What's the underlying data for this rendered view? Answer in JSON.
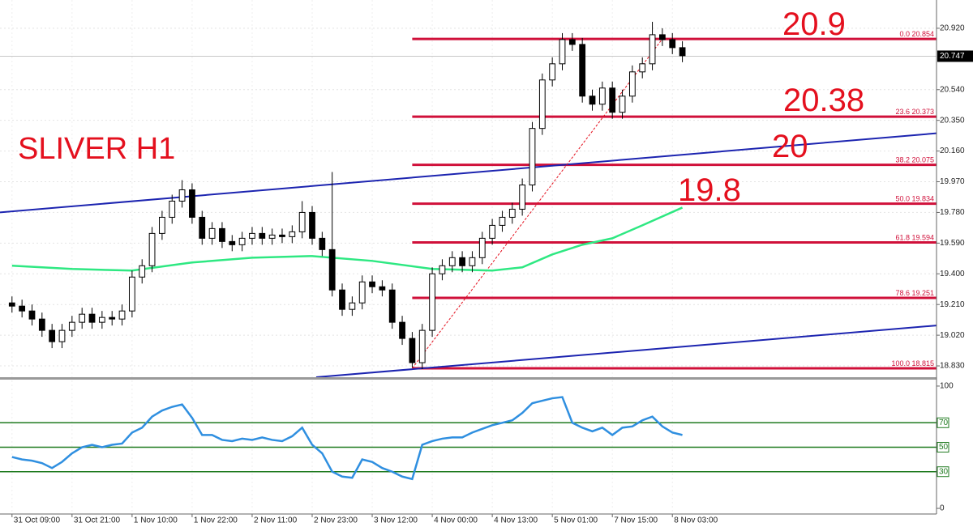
{
  "chart_data": {
    "type": "candlestick",
    "title": "SLIVER H1",
    "annotations": [
      "20.9",
      "20.38",
      "20",
      "19.8"
    ],
    "xlim": [
      -1.2,
      92.4
    ],
    "xticks": [
      {
        "value": 0,
        "label": "31 Oct 09:00"
      },
      {
        "value": 6,
        "label": "31 Oct 21:00"
      },
      {
        "value": 12,
        "label": "1 Nov 10:00"
      },
      {
        "value": 18,
        "label": "1 Nov 22:00"
      },
      {
        "value": 24,
        "label": "2 Nov 11:00"
      },
      {
        "value": 30,
        "label": "2 Nov 23:00"
      },
      {
        "value": 36,
        "label": "3 Nov 12:00"
      },
      {
        "value": 42,
        "label": "4 Nov 00:00"
      },
      {
        "value": 48,
        "label": "4 Nov 13:00"
      },
      {
        "value": 54,
        "label": "5 Nov 01:00"
      },
      {
        "value": 60,
        "label": "7 Nov 15:00"
      },
      {
        "value": 66,
        "label": "8 Nov 03:00"
      }
    ],
    "ylim": [
      18.76,
      21.095
    ],
    "yticks": [
      {
        "value": 20.92,
        "label": "20.920"
      },
      {
        "value": 20.54,
        "label": "20.540"
      },
      {
        "value": 20.35,
        "label": "20.350"
      },
      {
        "value": 20.16,
        "label": "20.160"
      },
      {
        "value": 19.97,
        "label": "19.970"
      },
      {
        "value": 19.78,
        "label": "19.780"
      },
      {
        "value": 19.59,
        "label": "19.590"
      },
      {
        "value": 19.4,
        "label": "19.400"
      },
      {
        "value": 19.21,
        "label": "19.210"
      },
      {
        "value": 19.02,
        "label": "19.020"
      },
      {
        "value": 18.83,
        "label": "18.830"
      }
    ],
    "grid": true,
    "current_price": 20.747,
    "color": "#000000",
    "open": [
      19.22,
      19.2,
      19.17,
      19.12,
      19.05,
      18.98,
      19.05,
      19.1,
      19.15,
      19.1,
      19.13,
      19.12,
      19.17,
      19.38,
      19.45,
      19.65,
      19.75,
      19.85,
      19.92,
      19.75,
      19.62,
      19.68,
      19.6,
      19.58,
      19.62,
      19.65,
      19.62,
      19.64,
      19.63,
      19.66,
      19.78,
      19.62,
      19.55,
      19.3,
      19.18,
      19.22,
      19.35,
      19.32,
      19.3,
      19.1,
      19.0,
      18.85,
      19.05,
      19.4,
      19.45,
      19.5,
      19.45,
      19.5,
      19.62,
      19.7,
      19.75,
      19.8,
      19.95,
      20.3,
      20.6,
      20.7,
      20.85,
      20.82,
      20.5,
      20.45,
      20.55,
      20.4,
      20.5,
      20.65,
      20.7,
      20.88,
      20.85,
      20.8
    ],
    "high": [
      19.26,
      19.24,
      19.21,
      19.16,
      19.09,
      19.09,
      19.14,
      19.19,
      19.19,
      19.17,
      19.17,
      19.21,
      19.42,
      19.49,
      19.69,
      19.79,
      19.89,
      19.98,
      19.96,
      19.79,
      19.72,
      19.72,
      19.64,
      19.66,
      19.69,
      19.69,
      19.68,
      19.68,
      19.7,
      19.85,
      19.82,
      19.66,
      20.03,
      19.34,
      19.26,
      19.39,
      19.39,
      19.36,
      19.34,
      19.14,
      19.04,
      19.09,
      19.44,
      19.49,
      19.54,
      19.54,
      19.54,
      19.66,
      19.74,
      19.79,
      19.84,
      19.99,
      20.34,
      20.64,
      20.74,
      20.89,
      20.89,
      20.86,
      20.54,
      20.59,
      20.59,
      20.54,
      20.69,
      20.74,
      20.96,
      20.92,
      20.89,
      20.84
    ],
    "low": [
      19.16,
      19.13,
      19.08,
      19.01,
      18.94,
      18.94,
      19.01,
      19.06,
      19.06,
      19.06,
      19.08,
      19.08,
      19.13,
      19.34,
      19.41,
      19.61,
      19.71,
      19.81,
      19.71,
      19.58,
      19.58,
      19.56,
      19.54,
      19.54,
      19.58,
      19.58,
      19.58,
      19.59,
      19.59,
      19.62,
      19.58,
      19.51,
      19.26,
      19.14,
      19.14,
      19.18,
      19.28,
      19.26,
      19.06,
      18.96,
      18.82,
      18.81,
      19.01,
      19.36,
      19.41,
      19.41,
      19.41,
      19.46,
      19.58,
      19.66,
      19.71,
      19.76,
      19.91,
      20.26,
      20.56,
      20.66,
      20.78,
      20.46,
      20.41,
      20.41,
      20.36,
      20.36,
      20.46,
      20.61,
      20.66,
      20.81,
      20.76,
      20.71
    ],
    "close": [
      19.2,
      19.17,
      19.12,
      19.05,
      18.98,
      19.05,
      19.1,
      19.15,
      19.1,
      19.13,
      19.12,
      19.17,
      19.38,
      19.45,
      19.65,
      19.75,
      19.85,
      19.92,
      19.75,
      19.62,
      19.68,
      19.6,
      19.58,
      19.62,
      19.65,
      19.62,
      19.64,
      19.63,
      19.66,
      19.78,
      19.62,
      19.55,
      19.3,
      19.18,
      19.22,
      19.35,
      19.32,
      19.3,
      19.1,
      19.0,
      18.85,
      19.05,
      19.4,
      19.45,
      19.5,
      19.45,
      19.5,
      19.62,
      19.7,
      19.75,
      19.8,
      19.95,
      20.3,
      20.6,
      20.7,
      20.85,
      20.82,
      20.5,
      20.45,
      20.55,
      20.4,
      20.5,
      20.65,
      20.7,
      20.88,
      20.85,
      20.8,
      20.75
    ],
    "moving_average": {
      "color": "#2ee882",
      "x": [
        0,
        6,
        12,
        18,
        24,
        30,
        36,
        42,
        48,
        51,
        54,
        57,
        60,
        63,
        67
      ],
      "values": [
        19.45,
        19.43,
        19.42,
        19.47,
        19.5,
        19.51,
        19.48,
        19.43,
        19.42,
        19.44,
        19.52,
        19.58,
        19.62,
        19.7,
        19.81
      ]
    },
    "trend_lines": [
      {
        "color": "#1c24b0",
        "x": [
          -1.2,
          92.4
        ],
        "values": [
          19.78,
          20.27
        ]
      },
      {
        "color": "#1c24b0",
        "x": [
          30.4,
          92.4
        ],
        "values": [
          18.76,
          19.08
        ]
      }
    ],
    "swing_line": {
      "color": "#e4101e",
      "x": [
        40,
        65
      ],
      "values": [
        18.815,
        20.854
      ]
    },
    "fib_levels": {
      "color": "#d0103a",
      "start": 40,
      "levels": [
        {
          "value": 20.854,
          "label": "0.0 20.854"
        },
        {
          "value": 20.373,
          "label": "23.6 20.373"
        },
        {
          "value": 20.075,
          "label": "38.2 20.075"
        },
        {
          "value": 19.834,
          "label": "50.0 19.834"
        },
        {
          "value": 19.594,
          "label": "61.8 19.594"
        },
        {
          "value": 19.251,
          "label": "78.6 19.251"
        },
        {
          "value": 18.815,
          "label": "100.0 18.815"
        }
      ]
    },
    "rsi": {
      "color": "#2f8fe0",
      "ylim": [
        -4.6,
        104.6
      ],
      "yticks": [
        100,
        0
      ],
      "levels": [
        70,
        50,
        30
      ],
      "level_color": "#1f7a1f",
      "values": [
        42,
        40,
        39,
        37,
        33,
        38,
        45,
        50,
        52,
        50,
        52,
        53,
        62,
        66,
        75,
        80,
        83,
        85,
        74,
        60,
        60,
        56,
        55,
        57,
        56,
        58,
        56,
        55,
        59,
        66,
        52,
        45,
        30,
        26,
        25,
        40,
        38,
        33,
        30,
        26,
        24,
        52,
        55,
        57,
        58,
        58,
        62,
        65,
        68,
        70,
        72,
        78,
        86,
        88,
        90,
        91,
        70,
        66,
        63,
        66,
        60,
        66,
        67,
        72,
        75,
        67,
        62,
        60
      ]
    }
  }
}
